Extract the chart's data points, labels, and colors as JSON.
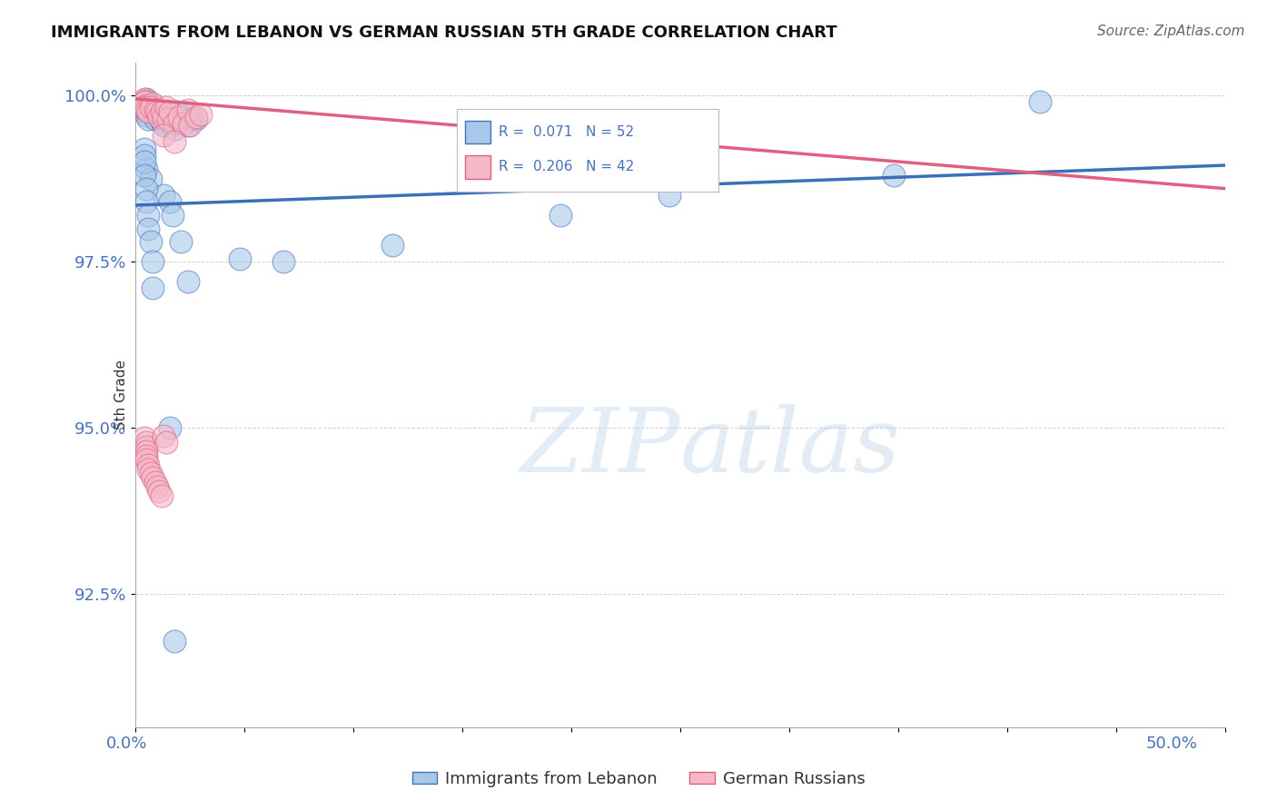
{
  "title": "IMMIGRANTS FROM LEBANON VS GERMAN RUSSIAN 5TH GRADE CORRELATION CHART",
  "source": "Source: ZipAtlas.com",
  "ylabel": "5th Grade",
  "ytick_labels": [
    "100.0%",
    "97.5%",
    "95.0%",
    "92.5%"
  ],
  "ytick_values": [
    1.0,
    0.975,
    0.95,
    0.925
  ],
  "xlim": [
    0.0,
    0.5
  ],
  "ylim": [
    0.905,
    1.005
  ],
  "blue_scatter_x": [
    0.005,
    0.004,
    0.004,
    0.005,
    0.005,
    0.006,
    0.008,
    0.007,
    0.009,
    0.01,
    0.011,
    0.012,
    0.012,
    0.013,
    0.014,
    0.015,
    0.016,
    0.017,
    0.018,
    0.019,
    0.02,
    0.022,
    0.024,
    0.026,
    0.028,
    0.004,
    0.005,
    0.007,
    0.013,
    0.016,
    0.017,
    0.021,
    0.024,
    0.048,
    0.068,
    0.118,
    0.195,
    0.245,
    0.348,
    0.415,
    0.004,
    0.004,
    0.004,
    0.005,
    0.005,
    0.006,
    0.006,
    0.007,
    0.008,
    0.008,
    0.016,
    0.018
  ],
  "blue_scatter_y": [
    0.9995,
    0.999,
    0.998,
    0.9975,
    0.997,
    0.9965,
    0.9985,
    0.9975,
    0.9965,
    0.9975,
    0.997,
    0.9965,
    0.996,
    0.9955,
    0.9975,
    0.9965,
    0.996,
    0.9965,
    0.995,
    0.9975,
    0.996,
    0.9975,
    0.9955,
    0.9965,
    0.9965,
    0.992,
    0.989,
    0.9875,
    0.985,
    0.984,
    0.982,
    0.978,
    0.972,
    0.9755,
    0.975,
    0.9775,
    0.982,
    0.985,
    0.988,
    0.999,
    0.991,
    0.99,
    0.988,
    0.986,
    0.984,
    0.982,
    0.98,
    0.978,
    0.975,
    0.971,
    0.95,
    0.918
  ],
  "pink_scatter_x": [
    0.004,
    0.005,
    0.004,
    0.005,
    0.004,
    0.005,
    0.006,
    0.008,
    0.007,
    0.009,
    0.01,
    0.011,
    0.012,
    0.013,
    0.014,
    0.015,
    0.016,
    0.018,
    0.02,
    0.022,
    0.024,
    0.025,
    0.028,
    0.03,
    0.013,
    0.018,
    0.004,
    0.005,
    0.005,
    0.005,
    0.005,
    0.005,
    0.006,
    0.006,
    0.007,
    0.008,
    0.009,
    0.01,
    0.011,
    0.012,
    0.013,
    0.014
  ],
  "pink_scatter_y": [
    0.9995,
    0.9992,
    0.999,
    0.9985,
    0.9982,
    0.9978,
    0.9975,
    0.9988,
    0.9982,
    0.9978,
    0.9975,
    0.9968,
    0.9975,
    0.9968,
    0.9982,
    0.9965,
    0.9975,
    0.9958,
    0.9968,
    0.9958,
    0.9978,
    0.9955,
    0.9968,
    0.9972,
    0.994,
    0.993,
    0.9485,
    0.9478,
    0.9472,
    0.9465,
    0.9458,
    0.9452,
    0.9445,
    0.9438,
    0.9432,
    0.9425,
    0.9418,
    0.9412,
    0.9405,
    0.9398,
    0.9488,
    0.9478
  ],
  "blue_line_x": [
    0.0,
    0.5
  ],
  "blue_line_y": [
    0.9835,
    0.9895
  ],
  "pink_line_x": [
    0.0,
    0.5
  ],
  "pink_line_y": [
    0.9995,
    0.986
  ],
  "blue_face_color": "#a8c8e8",
  "pink_face_color": "#f4b8c8",
  "blue_edge_color": "#4472c4",
  "pink_edge_color": "#e06080",
  "blue_line_color": "#3a6fba",
  "pink_line_color": "#e06080",
  "background_color": "#ffffff",
  "grid_color": "#cccccc",
  "title_fontsize": 13,
  "tick_label_color": "#4472c4",
  "legend_r1_text": "R =  0.071   N = 52",
  "legend_r2_text": "R =  0.206   N = 42",
  "label_blue": "Immigrants from Lebanon",
  "label_pink": "German Russians"
}
